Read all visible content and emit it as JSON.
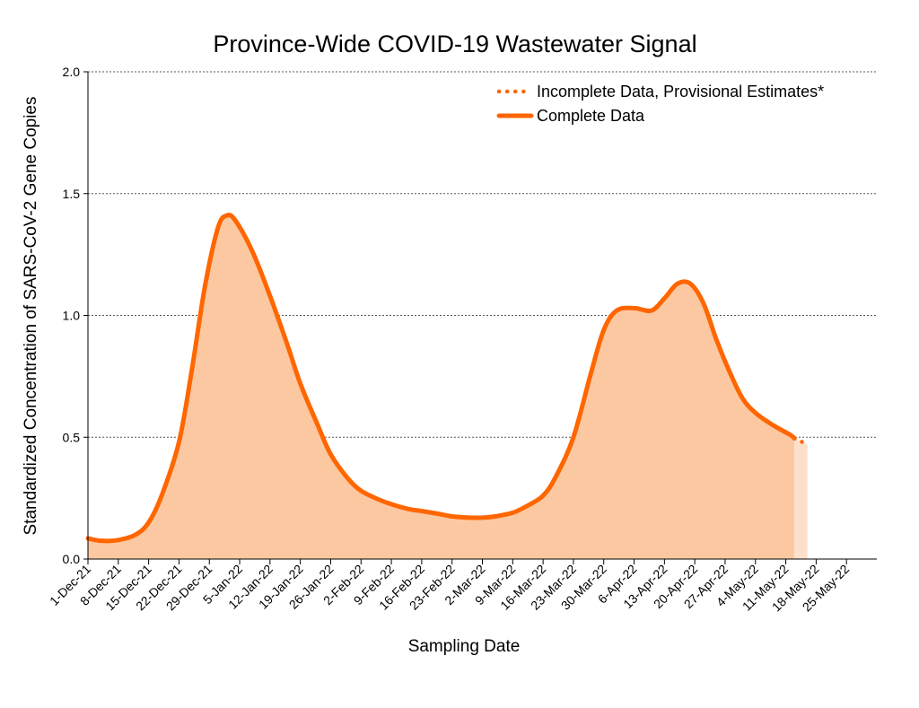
{
  "chart_data": {
    "type": "area",
    "title": "Province-Wide COVID-19 Wastewater Signal",
    "xlabel": "Sampling Date",
    "ylabel": "Standardized Concentration of SARS-CoV-2 Gene Copies",
    "x_ticks": [
      "1-Dec-21",
      "8-Dec-21",
      "15-Dec-21",
      "22-Dec-21",
      "29-Dec-21",
      "5-Jan-22",
      "12-Jan-22",
      "19-Jan-22",
      "26-Jan-22",
      "2-Feb-22",
      "9-Feb-22",
      "16-Feb-22",
      "23-Feb-22",
      "2-Mar-22",
      "9-Mar-22",
      "16-Mar-22",
      "23-Mar-22",
      "30-Mar-22",
      "6-Apr-22",
      "13-Apr-22",
      "20-Apr-22",
      "27-Apr-22",
      "4-May-22",
      "11-May-22",
      "18-May-22",
      "25-May-22"
    ],
    "y_ticks": [
      "0.0",
      "0.5",
      "1.0",
      "1.5",
      "2.0"
    ],
    "ylim": [
      0,
      2
    ],
    "grid": "horizontal dashed",
    "legend_position": "top-right",
    "series": [
      {
        "name": "Complete Data",
        "style": "solid",
        "color": "#FF6600",
        "fill_color": "#FCC8A2",
        "points": [
          [
            "1-Dec-21",
            0.085
          ],
          [
            "4-Dec-21",
            0.075
          ],
          [
            "8-Dec-21",
            0.078
          ],
          [
            "12-Dec-21",
            0.1
          ],
          [
            "15-Dec-21",
            0.15
          ],
          [
            "18-Dec-21",
            0.26
          ],
          [
            "22-Dec-21",
            0.48
          ],
          [
            "25-Dec-21",
            0.78
          ],
          [
            "28-Dec-21",
            1.12
          ],
          [
            "31-Dec-21",
            1.36
          ],
          [
            "2-Jan-22",
            1.41
          ],
          [
            "4-Jan-22",
            1.39
          ],
          [
            "8-Jan-22",
            1.26
          ],
          [
            "12-Jan-22",
            1.08
          ],
          [
            "16-Jan-22",
            0.88
          ],
          [
            "19-Jan-22",
            0.72
          ],
          [
            "23-Jan-22",
            0.55
          ],
          [
            "26-Jan-22",
            0.43
          ],
          [
            "30-Jan-22",
            0.33
          ],
          [
            "2-Feb-22",
            0.28
          ],
          [
            "6-Feb-22",
            0.245
          ],
          [
            "9-Feb-22",
            0.225
          ],
          [
            "13-Feb-22",
            0.205
          ],
          [
            "16-Feb-22",
            0.197
          ],
          [
            "20-Feb-22",
            0.185
          ],
          [
            "23-Feb-22",
            0.175
          ],
          [
            "27-Feb-22",
            0.17
          ],
          [
            "2-Mar-22",
            0.17
          ],
          [
            "5-Mar-22",
            0.175
          ],
          [
            "9-Mar-22",
            0.19
          ],
          [
            "12-Mar-22",
            0.215
          ],
          [
            "16-Mar-22",
            0.26
          ],
          [
            "19-Mar-22",
            0.34
          ],
          [
            "23-Mar-22",
            0.5
          ],
          [
            "27-Mar-22",
            0.76
          ],
          [
            "30-Mar-22",
            0.94
          ],
          [
            "2-Apr-22",
            1.02
          ],
          [
            "6-Apr-22",
            1.03
          ],
          [
            "10-Apr-22",
            1.02
          ],
          [
            "13-Apr-22",
            1.07
          ],
          [
            "16-Apr-22",
            1.13
          ],
          [
            "19-Apr-22",
            1.13
          ],
          [
            "22-Apr-22",
            1.05
          ],
          [
            "25-Apr-22",
            0.9
          ],
          [
            "28-Apr-22",
            0.77
          ],
          [
            "1-May-22",
            0.66
          ],
          [
            "4-May-22",
            0.6
          ],
          [
            "8-May-22",
            0.55
          ],
          [
            "12-May-22",
            0.51
          ],
          [
            "13-May-22",
            0.495
          ]
        ]
      },
      {
        "name": "Incomplete Data, Provisional Estimates*",
        "style": "dotted",
        "color": "#FF6600",
        "fill_color": "#FCE0CC",
        "points": [
          [
            "13-May-22",
            0.495
          ],
          [
            "14-May-22",
            0.487
          ],
          [
            "16-May-22",
            0.47
          ]
        ]
      }
    ]
  }
}
